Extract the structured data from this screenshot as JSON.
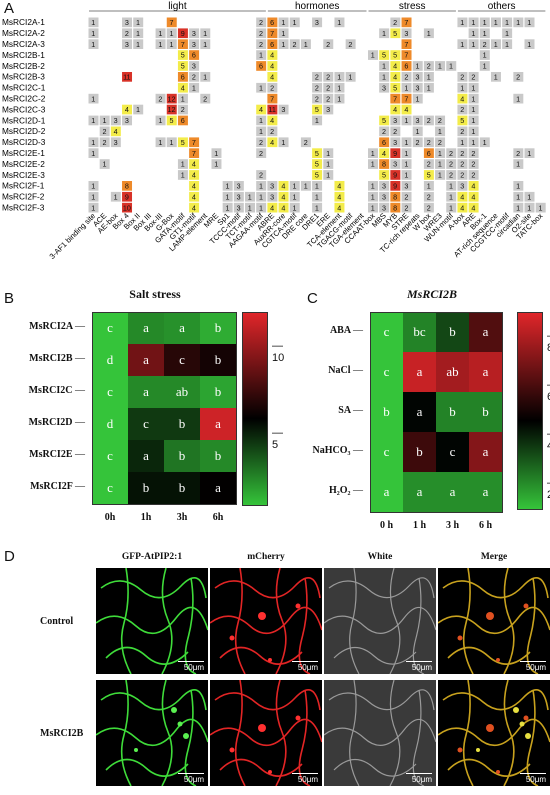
{
  "panels": {
    "a": "A",
    "b": "B",
    "c": "C",
    "d": "D"
  },
  "panel_a": {
    "categories": [
      {
        "label": "light",
        "cols": [
          0,
          15
        ]
      },
      {
        "label": "hormones",
        "cols": [
          16,
          24
        ]
      },
      {
        "label": "stress",
        "cols": [
          25,
          32
        ]
      },
      {
        "label": "others",
        "cols": [
          33,
          40
        ]
      }
    ],
    "genes": [
      "MsRCI2A-1",
      "MsRCI2A-2",
      "MsRCI2A-3",
      "MsRCI2B-1",
      "MsRCI2B-2",
      "MsRCI2B-3",
      "MsRCI2C-1",
      "MsRCI2C-2",
      "MsRCI2C-3",
      "MsRCI2D-1",
      "MsRCI2D-2",
      "MsRCI2D-3",
      "MsRCI2E-1",
      "MsRCI2E-2",
      "MsRCI2E-3",
      "MsRCI2F-1",
      "MsRCI2F-2",
      "MsRCI2F-3"
    ],
    "elements": [
      "3-AF1 binding site",
      "ACE",
      "AE-box",
      "Box 4",
      "Box II",
      "Box III",
      "Box-III",
      "G-Box",
      "GATA-motif",
      "GT1-motif",
      "LAMP-element",
      "MRE",
      "Sp1",
      "TCCC-motif",
      "TCT-motif",
      "AAGAA-motif",
      "ABRE",
      "AuxRR-core",
      "CGTCA-motif",
      "DRE core",
      "DRE1",
      "ERE",
      "TCA-element",
      "TGACG-motif",
      "TGA-element",
      "CCAAT-box",
      "MBS",
      "MYB",
      "STRE",
      "TC-rich repeats",
      "W box",
      "WRE3",
      "WUN-motif",
      "A-box",
      "ARE",
      "Box-1",
      "AT-rich sequence",
      "CCGTCC-motif",
      "circadian",
      "O2-site",
      "TATC-box"
    ],
    "cells": [
      [
        1,
        0,
        0,
        3,
        1,
        0,
        0,
        7,
        0,
        0,
        0,
        0,
        0,
        0,
        0,
        2,
        6,
        1,
        1,
        0,
        3,
        0,
        1,
        0,
        0,
        0,
        0,
        2,
        7,
        0,
        0,
        0,
        0,
        1,
        1,
        1,
        1,
        1,
        1,
        1,
        0
      ],
      [
        1,
        0,
        0,
        2,
        1,
        0,
        1,
        1,
        9,
        3,
        1,
        0,
        0,
        0,
        0,
        2,
        7,
        1,
        0,
        0,
        0,
        0,
        0,
        0,
        0,
        0,
        1,
        5,
        3,
        0,
        1,
        0,
        0,
        0,
        1,
        1,
        0,
        1,
        0,
        0,
        0
      ],
      [
        1,
        0,
        0,
        3,
        1,
        0,
        1,
        1,
        7,
        3,
        1,
        0,
        0,
        0,
        0,
        2,
        6,
        1,
        2,
        1,
        0,
        2,
        0,
        2,
        0,
        0,
        0,
        0,
        7,
        0,
        0,
        0,
        0,
        1,
        1,
        2,
        1,
        1,
        0,
        1,
        0
      ],
      [
        0,
        0,
        0,
        0,
        0,
        0,
        0,
        0,
        5,
        6,
        0,
        0,
        0,
        0,
        0,
        1,
        4,
        0,
        0,
        0,
        0,
        0,
        0,
        0,
        0,
        1,
        5,
        5,
        7,
        0,
        0,
        0,
        0,
        0,
        0,
        1,
        0,
        0,
        0,
        0,
        0
      ],
      [
        0,
        0,
        0,
        0,
        0,
        0,
        0,
        0,
        5,
        3,
        0,
        0,
        0,
        0,
        0,
        6,
        4,
        0,
        0,
        0,
        0,
        0,
        0,
        0,
        0,
        0,
        1,
        4,
        6,
        1,
        2,
        1,
        1,
        0,
        0,
        1,
        0,
        0,
        0,
        0,
        0
      ],
      [
        0,
        0,
        0,
        11,
        0,
        0,
        0,
        0,
        6,
        2,
        1,
        0,
        0,
        0,
        0,
        0,
        4,
        0,
        0,
        0,
        2,
        2,
        1,
        1,
        0,
        0,
        1,
        4,
        2,
        3,
        1,
        0,
        0,
        2,
        2,
        0,
        1,
        0,
        2,
        0,
        0
      ],
      [
        0,
        0,
        0,
        0,
        0,
        0,
        0,
        0,
        4,
        1,
        0,
        0,
        0,
        0,
        0,
        1,
        2,
        0,
        0,
        0,
        2,
        2,
        1,
        0,
        0,
        0,
        3,
        5,
        1,
        3,
        1,
        0,
        0,
        1,
        1,
        0,
        0,
        0,
        0,
        0,
        0
      ],
      [
        1,
        0,
        0,
        0,
        0,
        0,
        2,
        12,
        1,
        0,
        2,
        0,
        0,
        0,
        0,
        0,
        7,
        0,
        0,
        0,
        2,
        2,
        1,
        0,
        0,
        0,
        0,
        7,
        7,
        1,
        0,
        0,
        0,
        4,
        1,
        0,
        0,
        0,
        1,
        0,
        0
      ],
      [
        0,
        0,
        0,
        4,
        1,
        0,
        0,
        12,
        2,
        0,
        0,
        0,
        0,
        0,
        0,
        4,
        11,
        3,
        0,
        0,
        5,
        3,
        0,
        0,
        0,
        0,
        0,
        4,
        4,
        0,
        0,
        0,
        0,
        2,
        1,
        0,
        0,
        0,
        0,
        0,
        0
      ],
      [
        1,
        1,
        3,
        3,
        0,
        0,
        1,
        5,
        6,
        0,
        0,
        0,
        0,
        0,
        0,
        1,
        4,
        0,
        0,
        0,
        1,
        0,
        0,
        0,
        0,
        0,
        5,
        3,
        1,
        3,
        2,
        2,
        0,
        5,
        1,
        0,
        0,
        0,
        0,
        0,
        0
      ],
      [
        0,
        2,
        4,
        0,
        0,
        0,
        0,
        0,
        0,
        0,
        0,
        0,
        0,
        0,
        0,
        1,
        2,
        0,
        0,
        0,
        0,
        0,
        0,
        0,
        0,
        0,
        2,
        2,
        0,
        1,
        0,
        1,
        0,
        2,
        1,
        0,
        0,
        0,
        0,
        0,
        0
      ],
      [
        1,
        2,
        3,
        0,
        0,
        0,
        1,
        1,
        5,
        7,
        0,
        0,
        0,
        0,
        0,
        2,
        4,
        1,
        0,
        2,
        0,
        0,
        0,
        0,
        0,
        0,
        6,
        3,
        1,
        2,
        2,
        2,
        0,
        1,
        1,
        1,
        0,
        0,
        0,
        0,
        0
      ],
      [
        1,
        0,
        0,
        0,
        0,
        0,
        0,
        0,
        0,
        7,
        0,
        1,
        0,
        0,
        0,
        2,
        0,
        0,
        0,
        0,
        5,
        1,
        0,
        0,
        0,
        1,
        4,
        9,
        1,
        0,
        6,
        1,
        2,
        2,
        2,
        0,
        0,
        0,
        2,
        1,
        0
      ],
      [
        0,
        1,
        0,
        0,
        0,
        0,
        0,
        0,
        1,
        4,
        0,
        1,
        0,
        0,
        0,
        0,
        0,
        0,
        0,
        0,
        5,
        1,
        0,
        0,
        0,
        1,
        8,
        3,
        1,
        0,
        2,
        1,
        2,
        2,
        2,
        0,
        0,
        0,
        1,
        0,
        0
      ],
      [
        0,
        0,
        0,
        0,
        0,
        0,
        0,
        0,
        1,
        4,
        0,
        0,
        0,
        0,
        0,
        2,
        0,
        0,
        0,
        0,
        5,
        1,
        0,
        0,
        0,
        0,
        5,
        9,
        1,
        0,
        5,
        1,
        2,
        2,
        2,
        0,
        0,
        0,
        0,
        0,
        0
      ],
      [
        1,
        0,
        0,
        8,
        0,
        0,
        0,
        0,
        0,
        4,
        0,
        0,
        1,
        3,
        0,
        1,
        3,
        4,
        1,
        1,
        1,
        0,
        4,
        0,
        0,
        1,
        3,
        9,
        3,
        0,
        1,
        0,
        1,
        3,
        4,
        0,
        0,
        0,
        1,
        0,
        0
      ],
      [
        1,
        0,
        1,
        9,
        0,
        0,
        0,
        0,
        0,
        4,
        0,
        0,
        1,
        3,
        1,
        1,
        3,
        4,
        1,
        0,
        1,
        0,
        4,
        0,
        0,
        1,
        3,
        8,
        2,
        0,
        2,
        0,
        1,
        4,
        4,
        0,
        0,
        0,
        1,
        1,
        0
      ],
      [
        1,
        0,
        0,
        10,
        0,
        0,
        0,
        0,
        0,
        4,
        0,
        0,
        1,
        3,
        1,
        1,
        4,
        4,
        1,
        0,
        1,
        0,
        4,
        0,
        0,
        1,
        3,
        8,
        2,
        0,
        2,
        0,
        1,
        4,
        4,
        0,
        0,
        0,
        1,
        1,
        1
      ]
    ]
  },
  "panel_b": {
    "chart_data": {
      "type": "heatmap",
      "title": "Salt stress",
      "rows": [
        "MsRCI2A",
        "MsRCI2B",
        "MsRCI2C",
        "MsRCI2D",
        "MsRCI2E",
        "MsRCI2F"
      ],
      "cols": [
        "0h",
        "1h",
        "3h",
        "6h"
      ],
      "values": [
        [
          1,
          2.5,
          2.3,
          1.6
        ],
        [
          1,
          9,
          7,
          6.5
        ],
        [
          1,
          2.5,
          2.5,
          1.8
        ],
        [
          1,
          4.5,
          4.5,
          11.5
        ],
        [
          1,
          5,
          3,
          2.5
        ],
        [
          1,
          5.5,
          5.5,
          6
        ]
      ],
      "letters": [
        [
          "c",
          "a",
          "a",
          "b"
        ],
        [
          "d",
          "a",
          "c",
          "b"
        ],
        [
          "c",
          "a",
          "ab",
          "b"
        ],
        [
          "d",
          "c",
          "b",
          "a"
        ],
        [
          "c",
          "a",
          "b",
          "b"
        ],
        [
          "c",
          "b",
          "b",
          "a"
        ]
      ],
      "colorbar_ticks": [
        "10",
        "5"
      ],
      "colorbar_range": [
        1,
        12
      ]
    }
  },
  "panel_c": {
    "chart_data": {
      "type": "heatmap",
      "title": "MsRCI2B",
      "rows": [
        "ABA",
        "NaCl",
        "SA",
        "NaHCO3",
        "H2O2"
      ],
      "row_labels": [
        "ABA",
        "NaCl",
        "SA",
        "NaHCO₃",
        "H₂O₂"
      ],
      "cols": [
        "0 h",
        "1 h",
        "3 h",
        "6 h"
      ],
      "values": [
        [
          1,
          2.2,
          3.3,
          6.2
        ],
        [
          1,
          8.5,
          7.8,
          8.2
        ],
        [
          1,
          4.5,
          2.2,
          2.2
        ],
        [
          1,
          5.8,
          4.5,
          7.2
        ],
        [
          1,
          2,
          2,
          2
        ]
      ],
      "letters": [
        [
          "c",
          "bc",
          "b",
          "a"
        ],
        [
          "c",
          "a",
          "ab",
          "a"
        ],
        [
          "b",
          "a",
          "b",
          "b"
        ],
        [
          "c",
          "b",
          "c",
          "a"
        ],
        [
          "a",
          "a",
          "a",
          "a"
        ]
      ],
      "colorbar_ticks": [
        "8",
        "6",
        "4",
        "2"
      ],
      "colorbar_range": [
        1,
        9
      ]
    }
  },
  "panel_d": {
    "columns": [
      "GFP-AtPIP2:1",
      "mCherry",
      "White",
      "Merge"
    ],
    "rows": [
      "Control",
      "MsRCI2B"
    ],
    "scale_bar": "50μm"
  },
  "colors": {
    "gray": "#c9c9c9",
    "yellow": "#f3ec4a",
    "orange": "#ee8a2a",
    "red": "#d83228",
    "heat_low": "#35c43a",
    "heat_mid": "#000000",
    "heat_high": "#e0262a"
  }
}
